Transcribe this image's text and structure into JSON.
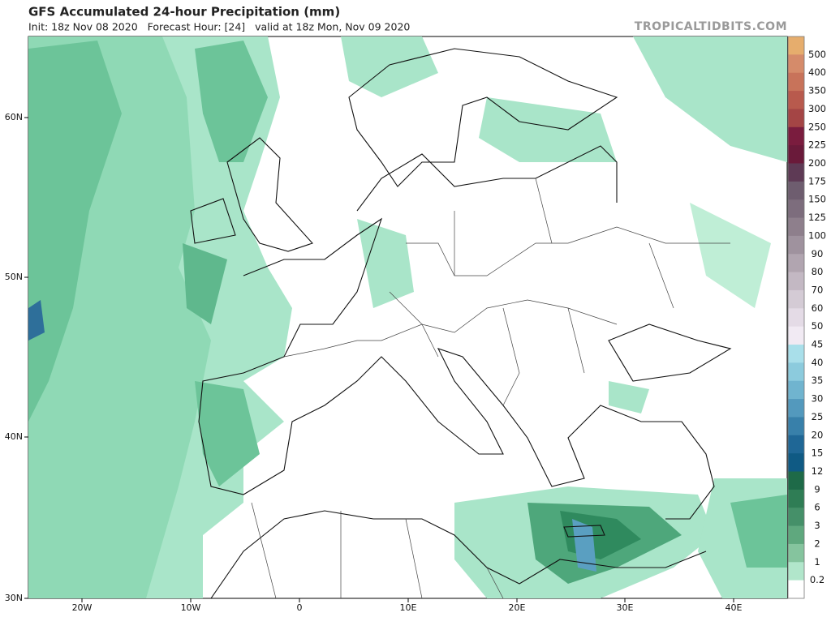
{
  "header": {
    "title": "GFS Accumulated 24-hour Precipitation (mm)",
    "subtitle": "Init: 18z Nov 08 2020   Forecast Hour: [24]   valid at 18z Mon, Nov 09 2020",
    "brand": "TROPICALTIDBITS.COM"
  },
  "map": {
    "latitude_labels": [
      "60N",
      "50N",
      "40N",
      "30N"
    ],
    "longitude_labels": [
      "20W",
      "10W",
      "0",
      "10E",
      "20E",
      "30E",
      "40E"
    ]
  },
  "legend": {
    "labels": [
      "500",
      "400",
      "350",
      "300",
      "250",
      "225",
      "200",
      "175",
      "150",
      "125",
      "100",
      "90",
      "80",
      "70",
      "60",
      "50",
      "45",
      "40",
      "35",
      "30",
      "25",
      "20",
      "15",
      "12",
      "9",
      "6",
      "3",
      "2",
      "1",
      "0.2"
    ]
  }
}
